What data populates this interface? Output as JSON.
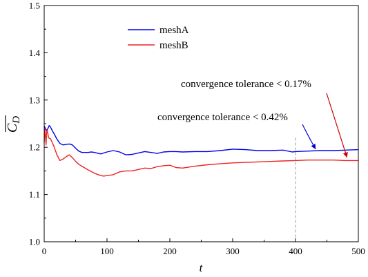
{
  "chart_data": {
    "type": "line",
    "xlabel": "t",
    "ylabel": "C_D (overline)",
    "xlim": [
      0,
      500
    ],
    "ylim": [
      1.0,
      1.5
    ],
    "xticks": [
      0,
      100,
      200,
      300,
      400,
      500
    ],
    "xtick_labels": [
      "0",
      "100",
      "200",
      "300",
      "400",
      "500"
    ],
    "yticks": [
      1.0,
      1.1,
      1.2,
      1.3,
      1.4,
      1.5
    ],
    "ytick_labels": [
      "1.0",
      "1.1",
      "1.2",
      "1.3",
      "1.4",
      "1.5"
    ],
    "legend_position": "upper-left",
    "grid": false,
    "series": [
      {
        "name": "meshA",
        "color": "#0000ee",
        "x": [
          0,
          2,
          4,
          6,
          8,
          10,
          13,
          16,
          20,
          25,
          30,
          35,
          40,
          45,
          50,
          55,
          60,
          65,
          70,
          75,
          80,
          90,
          100,
          110,
          120,
          130,
          140,
          150,
          160,
          170,
          180,
          190,
          200,
          210,
          220,
          240,
          260,
          280,
          300,
          320,
          340,
          360,
          380,
          395,
          400,
          420,
          440,
          460,
          480,
          500
        ],
        "y": [
          1.245,
          1.24,
          1.235,
          1.24,
          1.246,
          1.243,
          1.235,
          1.228,
          1.218,
          1.208,
          1.205,
          1.206,
          1.207,
          1.205,
          1.198,
          1.192,
          1.189,
          1.189,
          1.189,
          1.19,
          1.189,
          1.186,
          1.19,
          1.193,
          1.19,
          1.184,
          1.185,
          1.188,
          1.191,
          1.189,
          1.187,
          1.19,
          1.191,
          1.191,
          1.19,
          1.191,
          1.191,
          1.193,
          1.196,
          1.195,
          1.193,
          1.193,
          1.194,
          1.19,
          1.191,
          1.192,
          1.193,
          1.193,
          1.194,
          1.195
        ]
      },
      {
        "name": "meshB",
        "color": "#ee2222",
        "x": [
          0,
          1,
          2,
          3,
          4,
          5,
          7,
          10,
          13,
          16,
          20,
          25,
          30,
          35,
          40,
          45,
          50,
          55,
          60,
          70,
          80,
          90,
          95,
          100,
          110,
          120,
          130,
          140,
          150,
          160,
          170,
          180,
          190,
          200,
          210,
          220,
          230,
          240,
          260,
          280,
          300,
          320,
          340,
          360,
          380,
          400,
          420,
          440,
          460,
          480,
          500
        ],
        "y": [
          1.21,
          1.24,
          1.225,
          1.205,
          1.232,
          1.236,
          1.22,
          1.218,
          1.21,
          1.2,
          1.185,
          1.172,
          1.175,
          1.18,
          1.184,
          1.178,
          1.17,
          1.164,
          1.16,
          1.152,
          1.145,
          1.14,
          1.139,
          1.14,
          1.142,
          1.148,
          1.15,
          1.15,
          1.153,
          1.156,
          1.155,
          1.159,
          1.161,
          1.162,
          1.157,
          1.156,
          1.158,
          1.16,
          1.163,
          1.165,
          1.167,
          1.168,
          1.169,
          1.17,
          1.171,
          1.172,
          1.173,
          1.173,
          1.173,
          1.172,
          1.172
        ]
      }
    ],
    "annotations": [
      {
        "text": "convergence tolerance < 0.17%",
        "target_x": 482,
        "target_y": 1.174,
        "color": "#cc0000"
      },
      {
        "text": "convergence tolerance < 0.42%",
        "target_x": 432,
        "target_y": 1.193,
        "color": "#0000cc"
      }
    ],
    "reference_line_x": 400
  }
}
